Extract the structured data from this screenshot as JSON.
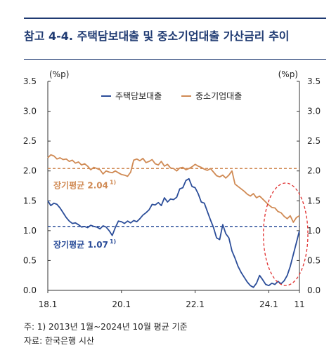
{
  "title": "참고 4-4. 주택담보대출 및 중소기업대출 가산금리 추이",
  "notes": [
    "주: 1) 2013년 1월~2024년 10월 평균 기준",
    "자료: 한국은행 시산"
  ],
  "chart_data": {
    "type": "line",
    "y_unit_left": "(%p)",
    "y_unit_right": "(%p)",
    "ylim": [
      0,
      3.5
    ],
    "y_ticks": [
      "0.0",
      "0.5",
      "1.0",
      "1.5",
      "2.0",
      "2.5",
      "3.0",
      "3.5"
    ],
    "x_range": [
      2018.0,
      2024.833
    ],
    "x_ticks": [
      {
        "label": "18.1",
        "x": 2018.0
      },
      {
        "label": "20.1",
        "x": 2020.0
      },
      {
        "label": "22.1",
        "x": 2022.0
      },
      {
        "label": "24.1",
        "x": 2024.0
      },
      {
        "label": "11",
        "x": 2024.833
      }
    ],
    "legend": {
      "placement": "top-center"
    },
    "series": [
      {
        "name": "주택담보대출",
        "color": "#2b4d99",
        "x": [
          2018.0,
          2018.083,
          2018.167,
          2018.25,
          2018.333,
          2018.417,
          2018.5,
          2018.583,
          2018.667,
          2018.75,
          2018.833,
          2018.917,
          2019.0,
          2019.083,
          2019.167,
          2019.25,
          2019.333,
          2019.417,
          2019.5,
          2019.583,
          2019.667,
          2019.75,
          2019.833,
          2019.917,
          2020.0,
          2020.083,
          2020.167,
          2020.25,
          2020.333,
          2020.417,
          2020.5,
          2020.583,
          2020.667,
          2020.75,
          2020.833,
          2020.917,
          2021.0,
          2021.083,
          2021.167,
          2021.25,
          2021.333,
          2021.417,
          2021.5,
          2021.583,
          2021.667,
          2021.75,
          2021.833,
          2021.917,
          2022.0,
          2022.083,
          2022.167,
          2022.25,
          2022.333,
          2022.417,
          2022.5,
          2022.583,
          2022.667,
          2022.75,
          2022.833,
          2022.917,
          2023.0,
          2023.083,
          2023.167,
          2023.25,
          2023.333,
          2023.417,
          2023.5,
          2023.583,
          2023.667,
          2023.75,
          2023.833,
          2023.917,
          2024.0,
          2024.083,
          2024.167,
          2024.25,
          2024.333,
          2024.417,
          2024.5,
          2024.583,
          2024.667,
          2024.75,
          2024.833
        ],
        "values": [
          1.5,
          1.42,
          1.46,
          1.44,
          1.38,
          1.3,
          1.22,
          1.16,
          1.12,
          1.13,
          1.1,
          1.06,
          1.07,
          1.05,
          1.09,
          1.07,
          1.06,
          1.03,
          1.08,
          1.06,
          1.0,
          0.92,
          1.05,
          1.16,
          1.15,
          1.12,
          1.16,
          1.13,
          1.17,
          1.15,
          1.2,
          1.26,
          1.3,
          1.35,
          1.44,
          1.43,
          1.47,
          1.42,
          1.55,
          1.48,
          1.53,
          1.52,
          1.56,
          1.7,
          1.72,
          1.84,
          1.87,
          1.74,
          1.72,
          1.62,
          1.48,
          1.46,
          1.32,
          1.18,
          1.05,
          0.88,
          0.85,
          1.1,
          0.95,
          0.88,
          0.66,
          0.54,
          0.4,
          0.3,
          0.22,
          0.14,
          0.08,
          0.05,
          0.12,
          0.25,
          0.18,
          0.1,
          0.08,
          0.12,
          0.1,
          0.15,
          0.11,
          0.16,
          0.25,
          0.4,
          0.6,
          0.8,
          1.0
        ]
      },
      {
        "name": "중소기업대출",
        "color": "#d08a54",
        "x": [
          2018.0,
          2018.083,
          2018.167,
          2018.25,
          2018.333,
          2018.417,
          2018.5,
          2018.583,
          2018.667,
          2018.75,
          2018.833,
          2018.917,
          2019.0,
          2019.083,
          2019.167,
          2019.25,
          2019.333,
          2019.417,
          2019.5,
          2019.583,
          2019.667,
          2019.75,
          2019.833,
          2019.917,
          2020.0,
          2020.083,
          2020.167,
          2020.25,
          2020.333,
          2020.417,
          2020.5,
          2020.583,
          2020.667,
          2020.75,
          2020.833,
          2020.917,
          2021.0,
          2021.083,
          2021.167,
          2021.25,
          2021.333,
          2021.417,
          2021.5,
          2021.583,
          2021.667,
          2021.75,
          2021.833,
          2021.917,
          2022.0,
          2022.083,
          2022.167,
          2022.25,
          2022.333,
          2022.417,
          2022.5,
          2022.583,
          2022.667,
          2022.75,
          2022.833,
          2022.917,
          2023.0,
          2023.083,
          2023.167,
          2023.25,
          2023.333,
          2023.417,
          2023.5,
          2023.583,
          2023.667,
          2023.75,
          2023.833,
          2023.917,
          2024.0,
          2024.083,
          2024.167,
          2024.25,
          2024.333,
          2024.417,
          2024.5,
          2024.583,
          2024.667,
          2024.75,
          2024.833
        ],
        "values": [
          2.22,
          2.27,
          2.25,
          2.2,
          2.22,
          2.19,
          2.2,
          2.16,
          2.18,
          2.13,
          2.15,
          2.1,
          2.12,
          2.08,
          2.02,
          2.06,
          2.04,
          2.02,
          1.95,
          2.0,
          1.98,
          1.97,
          2.0,
          1.97,
          1.94,
          1.93,
          1.91,
          1.98,
          2.18,
          2.2,
          2.17,
          2.21,
          2.14,
          2.16,
          2.19,
          2.12,
          2.1,
          2.16,
          2.08,
          2.11,
          2.05,
          2.04,
          2.0,
          2.05,
          2.06,
          2.02,
          2.04,
          2.07,
          2.11,
          2.08,
          2.06,
          2.03,
          2.01,
          2.04,
          1.98,
          1.92,
          1.9,
          1.93,
          1.88,
          1.93,
          2.0,
          1.78,
          1.74,
          1.7,
          1.66,
          1.61,
          1.58,
          1.62,
          1.55,
          1.58,
          1.53,
          1.48,
          1.43,
          1.39,
          1.38,
          1.32,
          1.3,
          1.24,
          1.2,
          1.25,
          1.14,
          1.22,
          1.25
        ]
      }
    ],
    "reference_lines": [
      {
        "label": "장기평균",
        "value": 2.04,
        "value_text": "2.04",
        "footnote": "1)",
        "color": "#d08a54"
      },
      {
        "label": "장기평균",
        "value": 1.07,
        "value_text": "1.07",
        "footnote": "1)",
        "color": "#2b4d99"
      }
    ],
    "highlight": {
      "shape": "dashed-ellipse",
      "color": "#e03030",
      "x_from": 2024.083,
      "x_to": 2024.833
    }
  }
}
